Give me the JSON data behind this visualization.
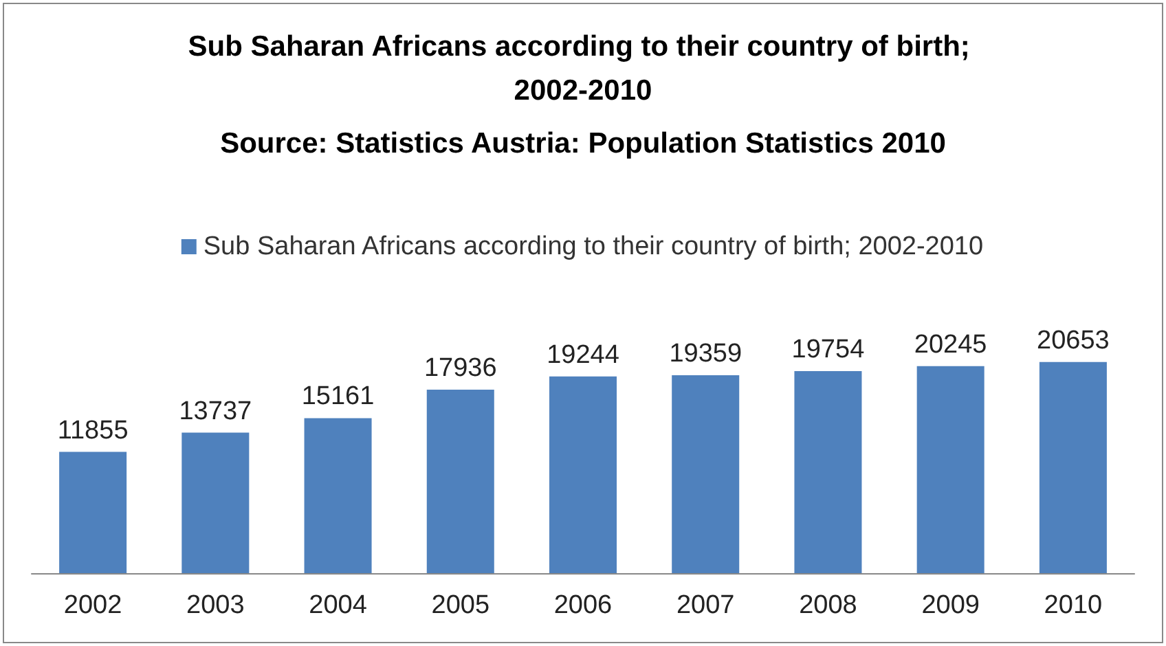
{
  "chart_data": {
    "type": "bar",
    "title": "Sub Saharan Africans according to their country of birth; 2002-2010",
    "subtitle": "Source: Statistics Austria: Population Statistics 2010",
    "categories": [
      "2002",
      "2003",
      "2004",
      "2005",
      "2006",
      "2007",
      "2008",
      "2009",
      "2010"
    ],
    "series": [
      {
        "name": "Sub Saharan Africans according to their country of birth; 2002-2010",
        "color": "#4f81bd",
        "values": [
          11855,
          13737,
          15161,
          17936,
          19244,
          19359,
          19754,
          20245,
          20653
        ]
      }
    ],
    "data_labels": true,
    "legend": "top",
    "grid": false,
    "tick_labels": "x"
  }
}
